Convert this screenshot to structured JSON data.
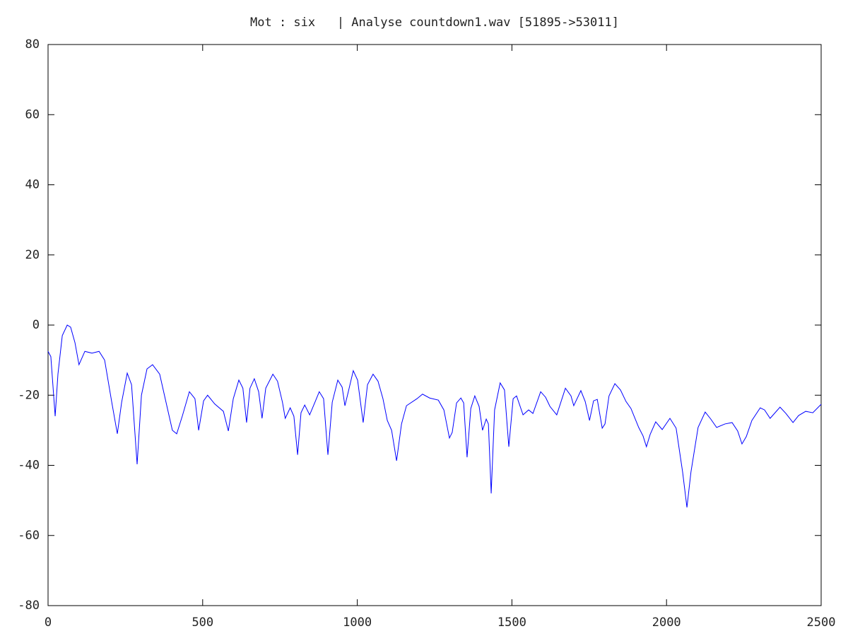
{
  "chart_data": {
    "type": "line",
    "title": "Mot : six   | Analyse countdown1.wav [51895->53011]",
    "color": "#0000ff",
    "xlim": [
      0,
      2500
    ],
    "ylim": [
      -80,
      80
    ],
    "xticks": [
      0,
      500,
      1000,
      1500,
      2000,
      2500
    ],
    "yticks": [
      -80,
      -60,
      -40,
      -20,
      0,
      20,
      40,
      60,
      80
    ],
    "x": [
      0,
      9,
      23,
      32,
      46,
      62,
      73,
      87,
      100,
      119,
      142,
      165,
      183,
      206,
      224,
      238,
      256,
      270,
      288,
      302,
      320,
      338,
      361,
      384,
      402,
      416,
      434,
      457,
      475,
      487,
      503,
      516,
      539,
      567,
      583,
      599,
      617,
      630,
      642,
      653,
      667,
      681,
      692,
      704,
      727,
      742,
      758,
      767,
      783,
      795,
      807,
      818,
      830,
      846,
      864,
      877,
      891,
      905,
      919,
      937,
      951,
      960,
      971,
      987,
      1001,
      1019,
      1033,
      1051,
      1067,
      1083,
      1097,
      1111,
      1127,
      1143,
      1159,
      1193,
      1211,
      1234,
      1262,
      1280,
      1298,
      1307,
      1321,
      1335,
      1344,
      1355,
      1367,
      1380,
      1394,
      1405,
      1417,
      1424,
      1433,
      1444,
      1462,
      1476,
      1490,
      1504,
      1515,
      1536,
      1554,
      1568,
      1593,
      1609,
      1623,
      1645,
      1673,
      1691,
      1700,
      1723,
      1737,
      1751,
      1764,
      1776,
      1792,
      1801,
      1814,
      1833,
      1851,
      1869,
      1885,
      1910,
      1924,
      1935,
      1947,
      1965,
      1986,
      2011,
      2031,
      2052,
      2066,
      2079,
      2102,
      2125,
      2143,
      2162,
      2189,
      2212,
      2230,
      2244,
      2258,
      2276,
      2303,
      2317,
      2335,
      2367,
      2386,
      2409,
      2427,
      2450,
      2473,
      2500
    ],
    "values": [
      -7.5,
      -9,
      -26,
      -14,
      -3,
      0,
      -0.6,
      -5,
      -11.3,
      -7.5,
      -8,
      -7.5,
      -10,
      -22,
      -31,
      -22,
      -13.7,
      -17,
      -39.7,
      -20,
      -12.5,
      -11.3,
      -14,
      -23,
      -30,
      -31,
      -26,
      -19,
      -21,
      -30,
      -21.6,
      -20,
      -22.5,
      -24.6,
      -30.2,
      -21,
      -15.7,
      -18,
      -27.8,
      -18,
      -15.3,
      -19,
      -26.6,
      -18,
      -14,
      -16,
      -22,
      -26.6,
      -23.6,
      -26,
      -37,
      -25,
      -22.8,
      -25.6,
      -21.8,
      -19,
      -21,
      -37,
      -22,
      -15.7,
      -17.7,
      -23,
      -19,
      -13,
      -15.7,
      -27.8,
      -17,
      -14,
      -16,
      -21,
      -27.2,
      -30,
      -38.7,
      -28.2,
      -23,
      -21,
      -19.7,
      -20.8,
      -21.4,
      -24.2,
      -32.2,
      -30.6,
      -22.2,
      -20.8,
      -22.2,
      -37.7,
      -23.8,
      -20.2,
      -23.2,
      -30,
      -26.8,
      -28.2,
      -48,
      -24.2,
      -16.5,
      -18.5,
      -34.7,
      -21,
      -20.2,
      -25.6,
      -24.2,
      -25.2,
      -19,
      -20.6,
      -23.2,
      -25.6,
      -18,
      -20.2,
      -23,
      -18.7,
      -21.8,
      -27.2,
      -21.6,
      -21.2,
      -29.4,
      -28.2,
      -20.2,
      -16.7,
      -18.5,
      -21.8,
      -23.8,
      -29.2,
      -31.6,
      -34.7,
      -31.2,
      -27.6,
      -29.8,
      -26.6,
      -29.4,
      -41.9,
      -52,
      -41.9,
      -29.2,
      -24.8,
      -26.8,
      -29.2,
      -28.2,
      -27.8,
      -30.2,
      -33.9,
      -31.8,
      -27.2,
      -23.6,
      -24.2,
      -26.6,
      -23.4,
      -25.2,
      -27.8,
      -25.8,
      -24.6,
      -25,
      -22.6
    ]
  }
}
